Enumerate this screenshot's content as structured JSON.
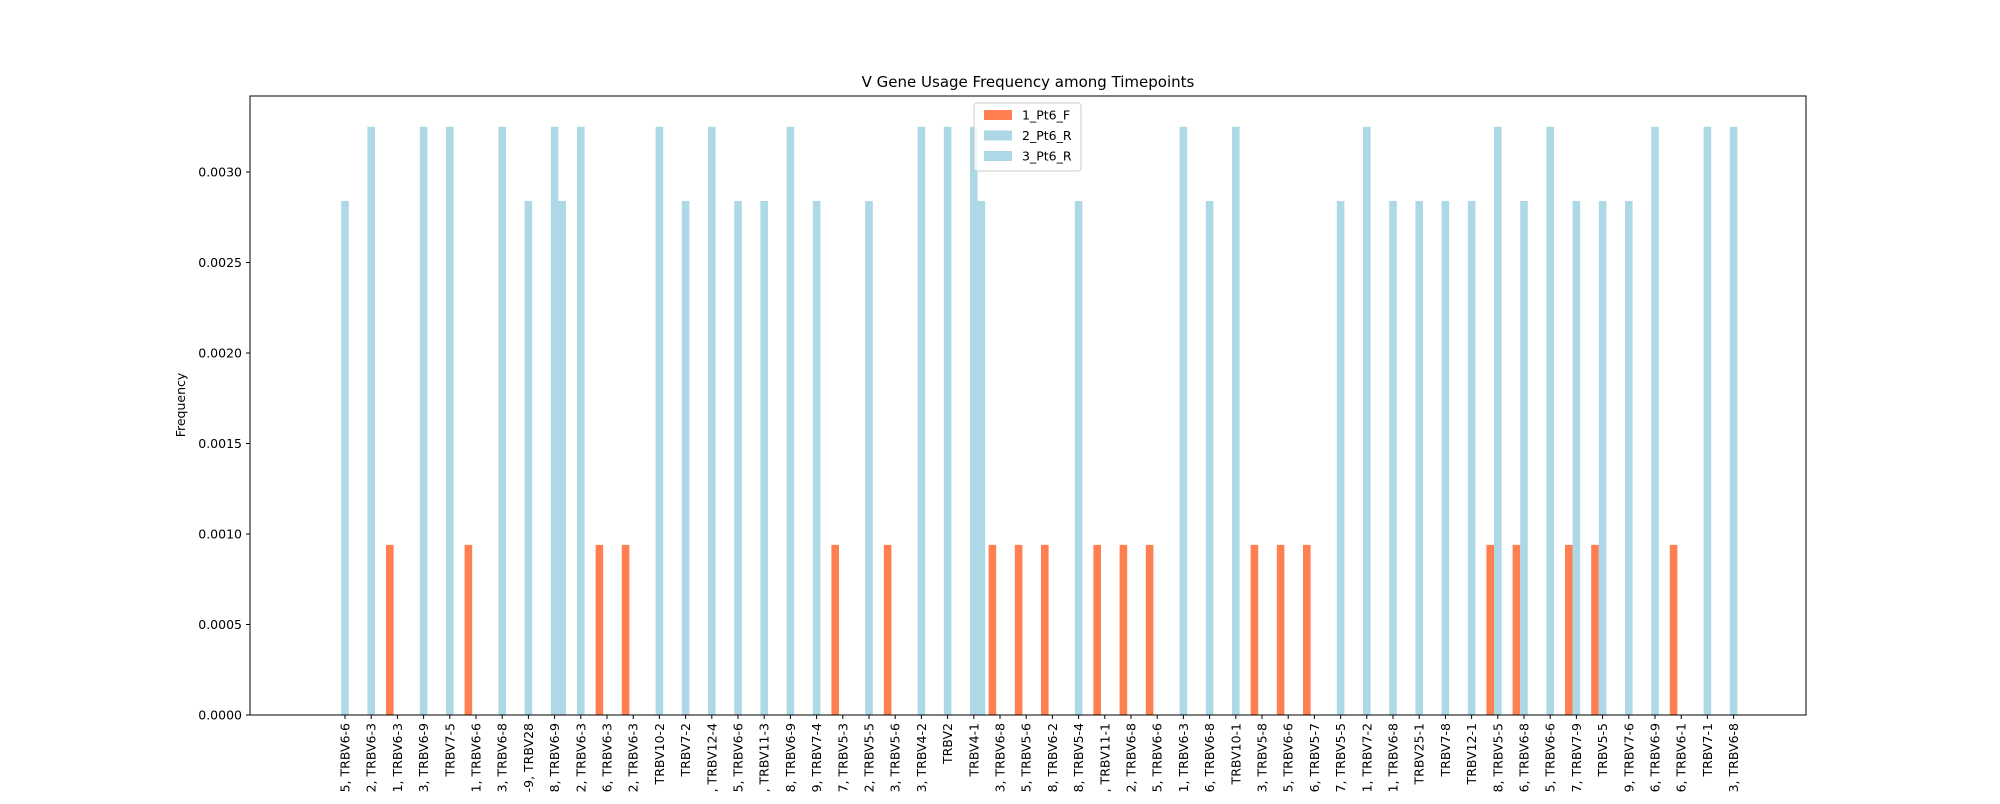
{
  "chart_data": {
    "type": "bar",
    "title": "V Gene Usage Frequency among Timepoints",
    "xlabel": "",
    "ylabel": "Frequency",
    "ylim": [
      0,
      0.00342
    ],
    "yticks": [
      "0.0000",
      "0.0005",
      "0.0010",
      "0.0015",
      "0.0020",
      "0.0025",
      "0.0030"
    ],
    "ytick_values": [
      0,
      0.0005,
      0.001,
      0.0015,
      0.002,
      0.0025,
      0.003
    ],
    "grid": false,
    "legend_position": "top-center",
    "categories": [
      "5, TRBV6-6",
      "2, TRBV6-3",
      "1, TRBV6-3",
      "3, TRBV6-9",
      "TRBV7-5",
      "1, TRBV6-6",
      "3, TRBV6-8",
      "-9, TRBV28",
      "8, TRBV6-9",
      "2, TRBV6-3",
      "6, TRBV6-3",
      "2, TRBV6-3",
      "TRBV10-2",
      "TRBV7-2",
      ", TRBV12-4",
      "5, TRBV6-6",
      ", TRBV11-3",
      "8, TRBV6-9",
      "9, TRBV7-4",
      "7, TRBV5-3",
      "2, TRBV5-5",
      "3, TRBV5-6",
      "3, TRBV4-2",
      "TRBV2",
      "TRBV4-1",
      "3, TRBV6-8",
      "5, TRBV5-6",
      "8, TRBV6-2",
      "8, TRBV5-4",
      ", TRBV11-1",
      "2, TRBV6-8",
      "5, TRBV6-6",
      "1, TRBV6-3",
      "6, TRBV6-8",
      "TRBV10-1",
      "3, TRBV5-8",
      "5, TRBV6-6",
      "6, TRBV5-7",
      "7, TRBV5-5",
      "1, TRBV7-2",
      "1, TRBV6-8",
      "TRBV25-1",
      "TRBV7-8",
      "TRBV12-1",
      "8, TRBV5-5",
      "6, TRBV6-8",
      "5, TRBV6-6",
      "7, TRBV7-9",
      "TRBV5-5",
      "9, TRBV7-6",
      "6, TRBV6-9",
      "6, TRBV6-1",
      "TRBV7-1",
      "3, TRBV6-8"
    ],
    "series": [
      {
        "name": "1_Pt6_F",
        "color": "#ff7f50",
        "values": [
          0,
          0,
          0.00094,
          0,
          0,
          0.00094,
          0,
          0,
          0,
          0,
          0.00094,
          0.00094,
          0,
          0,
          0,
          0,
          0,
          0,
          0,
          0.00094,
          0,
          0.00094,
          0,
          0,
          0,
          0.00094,
          0.00094,
          0.00094,
          0,
          0.00094,
          0.00094,
          0.00094,
          0,
          0,
          0,
          0.00094,
          0.00094,
          0.00094,
          0,
          0,
          0,
          0,
          0,
          0,
          0.00094,
          0.00094,
          0,
          0.00094,
          0.00094,
          0,
          0,
          0.00094,
          0,
          0
        ]
      },
      {
        "name": "2_Pt6_R",
        "color": "#add8e6",
        "values": [
          0.00284,
          0.00325,
          0,
          0.00325,
          0.00325,
          0,
          0.00325,
          0.00284,
          0.00325,
          0.00325,
          0,
          0,
          0.00325,
          0.00284,
          0.00325,
          0.00284,
          0.00284,
          0.00325,
          0.00284,
          0,
          0.00284,
          0,
          0.00325,
          0.00325,
          0.00325,
          0,
          0,
          0,
          0.00284,
          0,
          0,
          0,
          0.00325,
          0.00284,
          0.00325,
          0,
          0,
          0,
          0.00284,
          0.00325,
          0.00284,
          0.00284,
          0.00284,
          0.00284,
          0.00325,
          0.00284,
          0.00325,
          0.00284,
          0.00284,
          0.00284,
          0.00325,
          0,
          0.00325,
          0.00325
        ]
      },
      {
        "name": "3_Pt6_R",
        "color": "#add8e6",
        "values": [
          0,
          0,
          0,
          0,
          0,
          0,
          0,
          0,
          0.00284,
          0,
          0,
          0,
          0,
          0,
          0,
          0,
          0,
          0,
          0,
          0,
          0,
          0,
          0,
          0,
          0.00284,
          0,
          0,
          0,
          0,
          0,
          0,
          0,
          0,
          0,
          0,
          0,
          0,
          0,
          0,
          0,
          0,
          0,
          0,
          0,
          0,
          0,
          0,
          0,
          0,
          0,
          0,
          0,
          0,
          0
        ]
      }
    ]
  }
}
